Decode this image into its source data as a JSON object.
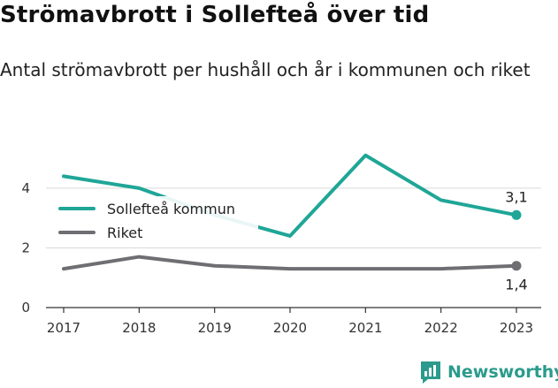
{
  "header": {
    "title": "Strömavbrott i Sollefteå över tid",
    "subtitle": "Antal strömavbrott per hushåll och år i kommunen och riket"
  },
  "brand": {
    "name": "Newsworthy",
    "icon": "newsworthy-logo-icon",
    "color": "#2a9b8c"
  },
  "chart_data": {
    "type": "line",
    "title": "Strömavbrott i Sollefteå över tid",
    "subtitle": "Antal strömavbrott per hushåll och år i kommunen och riket",
    "x": [
      "2017",
      "2018",
      "2019",
      "2020",
      "2021",
      "2022",
      "2023"
    ],
    "ylim": [
      0,
      5.3
    ],
    "yticks": [
      0,
      2,
      4
    ],
    "ytick_labels": [
      "0",
      "2",
      "4"
    ],
    "grid": true,
    "legend_position": "top-left",
    "series": [
      {
        "name": "Sollefteå kommun",
        "color": "#1fa697",
        "values": [
          4.4,
          4.0,
          3.1,
          2.4,
          5.1,
          3.6,
          3.1
        ],
        "end_label": "3,1"
      },
      {
        "name": "Riket",
        "color": "#6e6e73",
        "values": [
          1.3,
          1.7,
          1.4,
          1.3,
          1.3,
          1.3,
          1.4
        ],
        "end_label": "1,4"
      }
    ]
  }
}
